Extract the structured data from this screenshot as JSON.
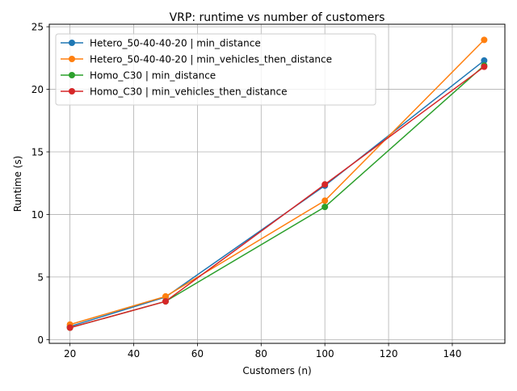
{
  "chart_data": {
    "type": "line",
    "title": "VRP: runtime vs number of customers",
    "xlabel": "Customers (n)",
    "ylabel": "Runtime (s)",
    "xlim": [
      13.5,
      156.5
    ],
    "ylim": [
      -0.3,
      25.2
    ],
    "xticks": [
      20,
      40,
      60,
      80,
      100,
      120,
      140
    ],
    "yticks": [
      0,
      5,
      10,
      15,
      20,
      25
    ],
    "x": [
      20,
      50,
      100,
      150
    ],
    "grid": true,
    "legend_position": "top-left",
    "series": [
      {
        "name": "Hetero_50-40-40-20 | min_distance",
        "color": "#1f77b4",
        "values": [
          1.05,
          3.4,
          12.3,
          22.3
        ]
      },
      {
        "name": "Hetero_50-40-40-20 | min_vehicles_then_distance",
        "color": "#ff7f0e",
        "values": [
          1.2,
          3.45,
          11.1,
          23.95
        ]
      },
      {
        "name": "Homo_C30 | min_distance",
        "color": "#2ca02c",
        "values": [
          0.95,
          3.05,
          10.6,
          21.9
        ]
      },
      {
        "name": "Homo_C30 | min_vehicles_then_distance",
        "color": "#d62728",
        "values": [
          0.95,
          3.05,
          12.4,
          21.8
        ]
      }
    ]
  }
}
